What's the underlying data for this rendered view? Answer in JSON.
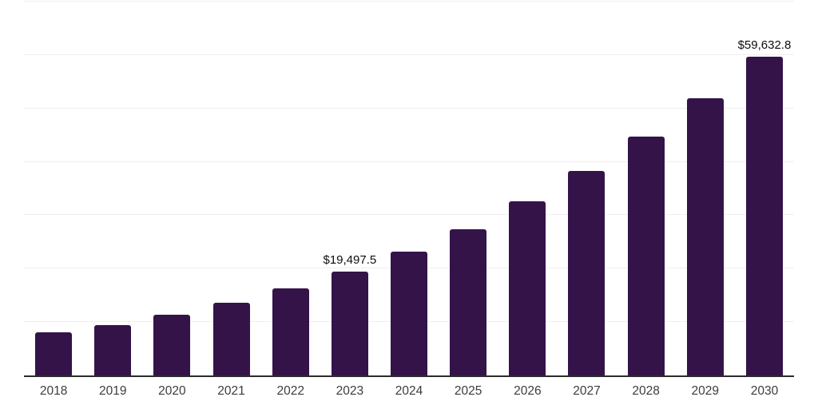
{
  "chart_data": {
    "type": "bar",
    "categories": [
      "2018",
      "2019",
      "2020",
      "2021",
      "2022",
      "2023",
      "2024",
      "2025",
      "2026",
      "2027",
      "2028",
      "2029",
      "2030"
    ],
    "values": [
      8100,
      9400,
      11400,
      13600,
      16300,
      19497.5,
      23200,
      27400,
      32600,
      38300,
      44700,
      51900,
      59632.8
    ],
    "data_labels": {
      "2023": "$19,497.5",
      "2030": "$59,632.8"
    },
    "title": "",
    "xlabel": "",
    "ylabel": "",
    "ylim": [
      0,
      70000
    ],
    "gridline_step": 10000,
    "grid": true,
    "legend": false,
    "colors": {
      "bar": "#341349",
      "axis": "#2b2b2b",
      "gridline": "#efeff1",
      "data_label": "#0d0d0d",
      "tick_label": "#3c3c3c",
      "background": "#ffffff"
    }
  }
}
